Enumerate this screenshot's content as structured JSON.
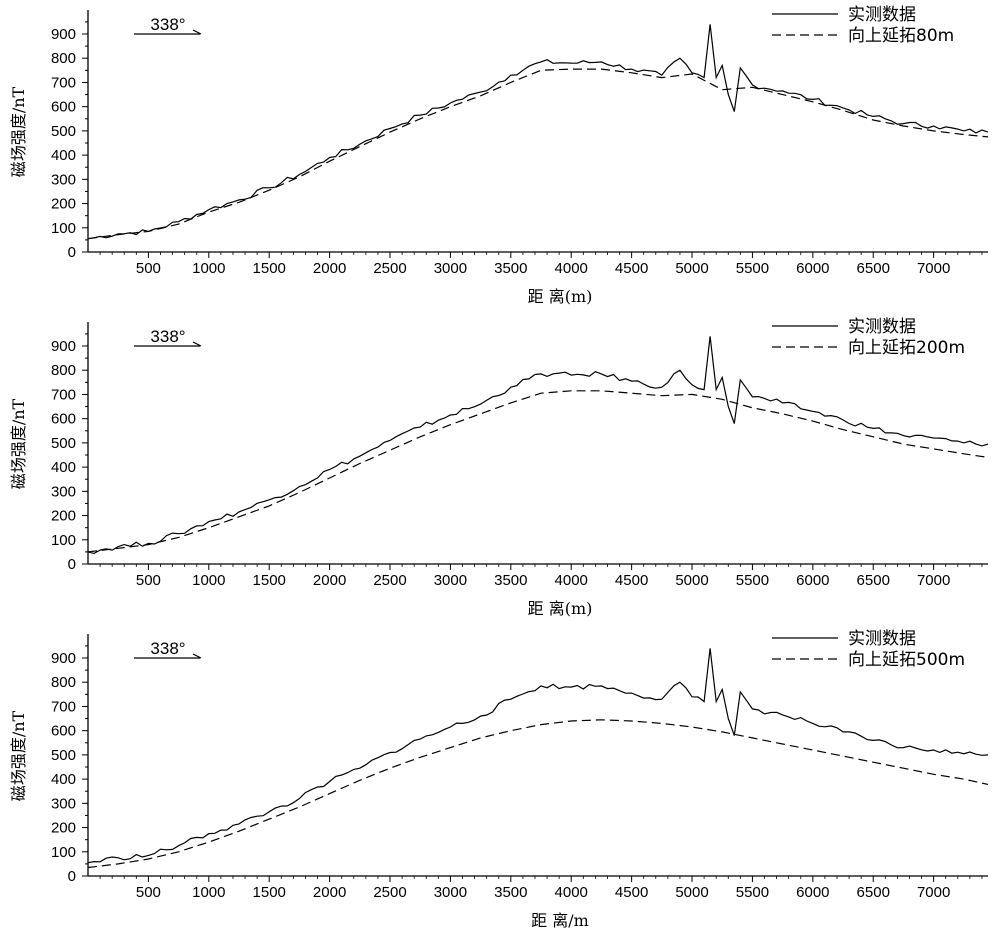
{
  "chart_data": [
    {
      "type": "line",
      "xlabel": "距 离(m)",
      "ylabel": "磁场强度/nT",
      "direction_label": "338°",
      "xlim": [
        0,
        7450
      ],
      "ylim": [
        0,
        1000
      ],
      "x_ticks": [
        500,
        1000,
        1500,
        2000,
        2500,
        3000,
        3500,
        4000,
        4500,
        5000,
        5500,
        6000,
        6500,
        7000
      ],
      "y_ticks": [
        0,
        100,
        200,
        300,
        400,
        500,
        600,
        700,
        800,
        900
      ],
      "legend_position": "top-right",
      "series": [
        {
          "name": "实测数据",
          "style": "solid",
          "x": [
            0,
            250,
            500,
            750,
            1000,
            1250,
            1500,
            1750,
            2000,
            2250,
            2500,
            2750,
            3000,
            3250,
            3500,
            3750,
            4000,
            4250,
            4500,
            4750,
            4900,
            5000,
            5100,
            5150,
            5200,
            5250,
            5300,
            5350,
            5400,
            5500,
            5750,
            6000,
            6250,
            6500,
            6750,
            7000,
            7250,
            7450
          ],
          "y": [
            55,
            75,
            85,
            125,
            175,
            215,
            265,
            320,
            390,
            445,
            510,
            565,
            615,
            660,
            730,
            785,
            780,
            785,
            755,
            730,
            800,
            740,
            720,
            940,
            720,
            770,
            650,
            580,
            760,
            690,
            665,
            630,
            595,
            560,
            530,
            520,
            500,
            495
          ]
        },
        {
          "name": "向上延拓80m",
          "style": "dashed",
          "x": [
            0,
            250,
            500,
            750,
            1000,
            1250,
            1500,
            1750,
            2000,
            2250,
            2500,
            2750,
            3000,
            3250,
            3500,
            3750,
            4000,
            4250,
            4500,
            4750,
            5000,
            5250,
            5500,
            5750,
            6000,
            6250,
            6500,
            6750,
            7000,
            7250,
            7450
          ],
          "y": [
            55,
            72,
            85,
            115,
            165,
            205,
            255,
            310,
            375,
            435,
            495,
            550,
            600,
            645,
            700,
            750,
            755,
            755,
            740,
            720,
            735,
            670,
            680,
            650,
            620,
            585,
            545,
            520,
            500,
            485,
            475
          ]
        }
      ]
    },
    {
      "type": "line",
      "xlabel": "距 离(m)",
      "ylabel": "磁场强度/nT",
      "direction_label": "338°",
      "xlim": [
        0,
        7450
      ],
      "ylim": [
        0,
        1000
      ],
      "x_ticks": [
        500,
        1000,
        1500,
        2000,
        2500,
        3000,
        3500,
        4000,
        4500,
        5000,
        5500,
        6000,
        6500,
        7000
      ],
      "y_ticks": [
        0,
        100,
        200,
        300,
        400,
        500,
        600,
        700,
        800,
        900
      ],
      "legend_position": "top-right",
      "series": [
        {
          "name": "实测数据",
          "style": "solid",
          "x": [
            0,
            250,
            500,
            750,
            1000,
            1250,
            1500,
            1750,
            2000,
            2250,
            2500,
            2750,
            3000,
            3250,
            3500,
            3750,
            4000,
            4250,
            4500,
            4750,
            4900,
            5000,
            5100,
            5150,
            5200,
            5250,
            5300,
            5350,
            5400,
            5500,
            5750,
            6000,
            6250,
            6500,
            6750,
            7000,
            7250,
            7450
          ],
          "y": [
            50,
            72,
            85,
            125,
            175,
            215,
            265,
            320,
            390,
            445,
            510,
            565,
            615,
            660,
            730,
            785,
            780,
            785,
            755,
            730,
            800,
            740,
            720,
            940,
            720,
            770,
            650,
            580,
            760,
            690,
            665,
            630,
            595,
            560,
            530,
            520,
            500,
            495
          ]
        },
        {
          "name": "向上延拓200m",
          "style": "dashed",
          "x": [
            0,
            250,
            500,
            750,
            1000,
            1250,
            1500,
            1750,
            2000,
            2250,
            2500,
            2750,
            3000,
            3250,
            3500,
            3750,
            4000,
            4250,
            4500,
            4750,
            5000,
            5250,
            5500,
            5750,
            6000,
            6250,
            6500,
            6750,
            7000,
            7250,
            7450
          ],
          "y": [
            50,
            65,
            80,
            110,
            150,
            195,
            240,
            295,
            355,
            415,
            470,
            525,
            575,
            620,
            665,
            705,
            715,
            715,
            705,
            695,
            700,
            680,
            645,
            620,
            590,
            555,
            525,
            495,
            475,
            455,
            440
          ]
        }
      ]
    },
    {
      "type": "line",
      "xlabel": "距 离/m",
      "ylabel": "磁场强度/nT",
      "direction_label": "338°",
      "xlim": [
        0,
        7450
      ],
      "ylim": [
        0,
        1000
      ],
      "x_ticks": [
        500,
        1000,
        1500,
        2000,
        2500,
        3000,
        3500,
        4000,
        4500,
        5000,
        5500,
        6000,
        6500,
        7000
      ],
      "y_ticks": [
        0,
        100,
        200,
        300,
        400,
        500,
        600,
        700,
        800,
        900
      ],
      "legend_position": "top-right",
      "series": [
        {
          "name": "实测数据",
          "style": "solid",
          "x": [
            0,
            250,
            500,
            750,
            1000,
            1250,
            1500,
            1750,
            2000,
            2250,
            2500,
            2750,
            3000,
            3250,
            3500,
            3750,
            4000,
            4250,
            4500,
            4750,
            4900,
            5000,
            5100,
            5150,
            5200,
            5250,
            5300,
            5350,
            5400,
            5500,
            5750,
            6000,
            6250,
            6500,
            6750,
            7000,
            7250,
            7450
          ],
          "y": [
            55,
            75,
            85,
            125,
            175,
            215,
            265,
            320,
            390,
            445,
            510,
            565,
            615,
            660,
            730,
            785,
            780,
            785,
            755,
            730,
            800,
            740,
            720,
            940,
            720,
            770,
            650,
            580,
            760,
            690,
            665,
            630,
            595,
            560,
            530,
            520,
            505,
            500
          ]
        },
        {
          "name": "向上延拓500m",
          "style": "dashed",
          "x": [
            0,
            250,
            500,
            750,
            1000,
            1250,
            1500,
            1750,
            2000,
            2250,
            2500,
            2750,
            3000,
            3250,
            3500,
            3750,
            4000,
            4250,
            4500,
            4750,
            5000,
            5250,
            5500,
            5750,
            6000,
            6250,
            6500,
            6750,
            7000,
            7250,
            7450
          ],
          "y": [
            35,
            50,
            70,
            100,
            140,
            185,
            235,
            285,
            340,
            395,
            445,
            490,
            530,
            570,
            600,
            625,
            640,
            645,
            640,
            630,
            615,
            595,
            570,
            545,
            520,
            495,
            470,
            445,
            420,
            400,
            378
          ]
        }
      ]
    }
  ]
}
